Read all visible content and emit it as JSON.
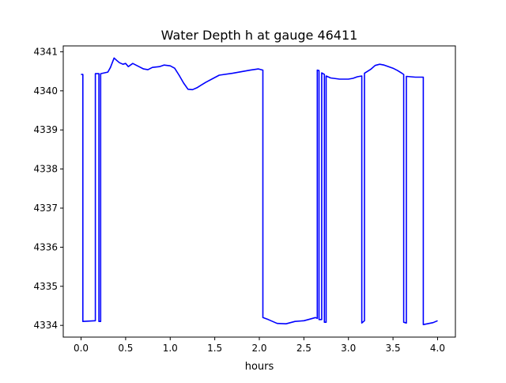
{
  "chart_data": {
    "type": "line",
    "title": "Water Depth h at gauge 46411",
    "xlabel": "hours",
    "ylabel": "",
    "xlim": [
      -0.2,
      4.2
    ],
    "ylim": [
      4333.7,
      4341.15
    ],
    "xticks": [
      0.0,
      0.5,
      1.0,
      1.5,
      2.0,
      2.5,
      3.0,
      3.5,
      4.0
    ],
    "xtick_labels": [
      "0.0",
      "0.5",
      "1.0",
      "1.5",
      "2.0",
      "2.5",
      "3.0",
      "3.5",
      "4.0"
    ],
    "yticks": [
      4334,
      4335,
      4336,
      4337,
      4338,
      4339,
      4340,
      4341
    ],
    "ytick_labels": [
      "4334",
      "4335",
      "4336",
      "4337",
      "4338",
      "4339",
      "4340",
      "4341"
    ],
    "grid": false,
    "series": [
      {
        "color": "#0000ff",
        "points": [
          [
            0.0,
            4340.42
          ],
          [
            0.02,
            4340.42
          ],
          [
            0.02,
            4334.1
          ],
          [
            0.16,
            4334.12
          ],
          [
            0.16,
            4340.44
          ],
          [
            0.2,
            4340.44
          ],
          [
            0.2,
            4334.1
          ],
          [
            0.22,
            4334.1
          ],
          [
            0.22,
            4340.44
          ],
          [
            0.3,
            4340.48
          ],
          [
            0.33,
            4340.6
          ],
          [
            0.37,
            4340.84
          ],
          [
            0.4,
            4340.78
          ],
          [
            0.43,
            4340.72
          ],
          [
            0.47,
            4340.68
          ],
          [
            0.5,
            4340.7
          ],
          [
            0.53,
            4340.62
          ],
          [
            0.58,
            4340.7
          ],
          [
            0.65,
            4340.62
          ],
          [
            0.7,
            4340.56
          ],
          [
            0.75,
            4340.54
          ],
          [
            0.8,
            4340.6
          ],
          [
            0.88,
            4340.62
          ],
          [
            0.93,
            4340.66
          ],
          [
            1.0,
            4340.64
          ],
          [
            1.05,
            4340.58
          ],
          [
            1.1,
            4340.4
          ],
          [
            1.15,
            4340.2
          ],
          [
            1.2,
            4340.04
          ],
          [
            1.25,
            4340.03
          ],
          [
            1.3,
            4340.08
          ],
          [
            1.4,
            4340.22
          ],
          [
            1.5,
            4340.34
          ],
          [
            1.55,
            4340.4
          ],
          [
            1.7,
            4340.45
          ],
          [
            1.9,
            4340.53
          ],
          [
            1.99,
            4340.56
          ],
          [
            2.04,
            4340.53
          ],
          [
            2.04,
            4334.2
          ],
          [
            2.1,
            4334.15
          ],
          [
            2.2,
            4334.05
          ],
          [
            2.3,
            4334.04
          ],
          [
            2.4,
            4334.1
          ],
          [
            2.5,
            4334.12
          ],
          [
            2.55,
            4334.15
          ],
          [
            2.63,
            4334.2
          ],
          [
            2.65,
            4334.18
          ],
          [
            2.65,
            4340.53
          ],
          [
            2.67,
            4340.52
          ],
          [
            2.67,
            4334.15
          ],
          [
            2.7,
            4334.15
          ],
          [
            2.7,
            4340.46
          ],
          [
            2.73,
            4340.42
          ],
          [
            2.73,
            4334.08
          ],
          [
            2.75,
            4334.08
          ],
          [
            2.75,
            4340.38
          ],
          [
            2.8,
            4340.33
          ],
          [
            2.9,
            4340.3
          ],
          [
            3.0,
            4340.3
          ],
          [
            3.05,
            4340.32
          ],
          [
            3.1,
            4340.36
          ],
          [
            3.15,
            4340.38
          ],
          [
            3.15,
            4334.06
          ],
          [
            3.18,
            4334.12
          ],
          [
            3.18,
            4340.45
          ],
          [
            3.25,
            4340.55
          ],
          [
            3.3,
            4340.65
          ],
          [
            3.35,
            4340.68
          ],
          [
            3.4,
            4340.66
          ],
          [
            3.5,
            4340.58
          ],
          [
            3.55,
            4340.52
          ],
          [
            3.6,
            4340.45
          ],
          [
            3.62,
            4340.42
          ],
          [
            3.62,
            4334.08
          ],
          [
            3.65,
            4334.06
          ],
          [
            3.65,
            4340.37
          ],
          [
            3.75,
            4340.35
          ],
          [
            3.84,
            4340.35
          ],
          [
            3.84,
            4334.02
          ],
          [
            3.95,
            4334.07
          ],
          [
            4.0,
            4334.12
          ]
        ]
      }
    ]
  }
}
